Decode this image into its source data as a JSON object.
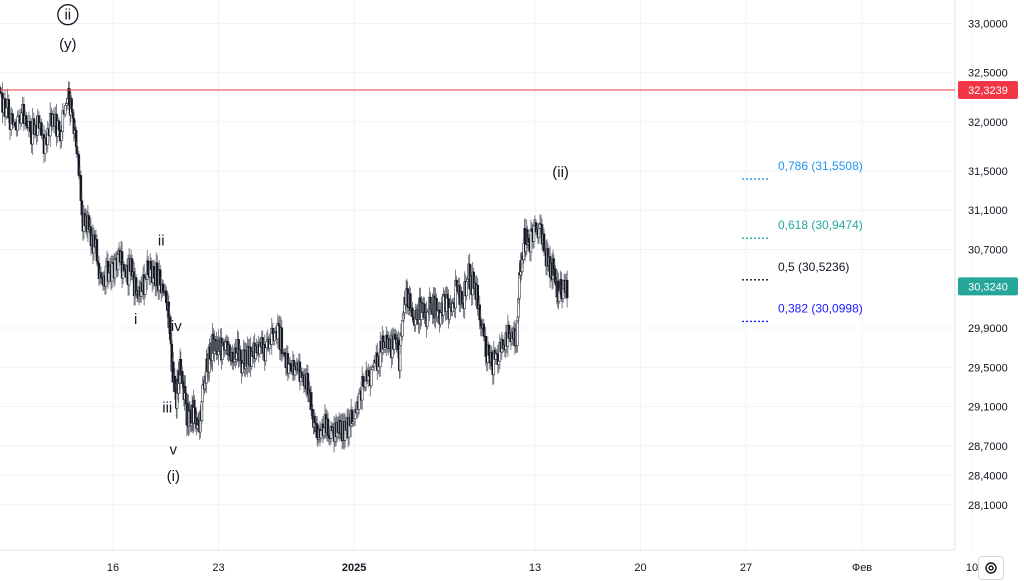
{
  "chart_data": {
    "type": "candlestick",
    "y_ticks": [
      "33,0000",
      "32,5000",
      "32,0000",
      "31,5000",
      "31,1000",
      "30,7000",
      "29,9000",
      "29,5000",
      "29,1000",
      "28,7000",
      "28,4000",
      "28,1000"
    ],
    "y_range": [
      27.7,
      33.25
    ],
    "x_ticks": [
      "16",
      "23",
      "2025",
      "13",
      "20",
      "27",
      "Фев",
      "10"
    ],
    "price_line": {
      "label": "32,3239",
      "value": 32.3239,
      "color": "#f23645"
    },
    "last_price": {
      "label": "30,3240",
      "value": 30.324,
      "color": "#26a69a"
    },
    "fib_levels": [
      {
        "label": "0,786 (31,5508)",
        "value": 31.5508,
        "color": "#2196f3"
      },
      {
        "label": "0,618 (30,9474)",
        "value": 30.9474,
        "color": "#26a69a"
      },
      {
        "label": "0,5 (30,5236)",
        "value": 30.5236,
        "color": "#131722"
      },
      {
        "label": "0,382 (30,0998)",
        "value": 30.0998,
        "color": "#1a1aff"
      }
    ],
    "waves": [
      {
        "label": "ii",
        "circled": true,
        "x_day": 13.0,
        "y": 33.05
      },
      {
        "label": "(y)",
        "circled": false,
        "x_day": 13.0,
        "y": 32.75
      },
      {
        "label": "ii",
        "circled": false,
        "x_day": 19.2,
        "y": 30.75
      },
      {
        "label": "i",
        "circled": false,
        "x_day": 17.5,
        "y": 29.95
      },
      {
        "label": "iv",
        "circled": false,
        "x_day": 20.2,
        "y": 29.88
      },
      {
        "label": "iii",
        "circled": false,
        "x_day": 19.6,
        "y": 29.05
      },
      {
        "label": "v",
        "circled": false,
        "x_day": 20.0,
        "y": 28.62
      },
      {
        "label": "(i)",
        "circled": false,
        "x_day": 20.0,
        "y": 28.35
      },
      {
        "label": "(ii)",
        "circled": false,
        "x_day": 45.7,
        "y": 31.45
      }
    ],
    "series": [
      {
        "d": 8.5,
        "c": 32.3
      },
      {
        "d": 9.0,
        "c": 32.1
      },
      {
        "d": 9.5,
        "c": 31.95
      },
      {
        "d": 10.0,
        "c": 32.1
      },
      {
        "d": 10.5,
        "c": 31.85
      },
      {
        "d": 11.0,
        "c": 32.0
      },
      {
        "d": 11.5,
        "c": 31.75
      },
      {
        "d": 12.0,
        "c": 32.05
      },
      {
        "d": 12.5,
        "c": 31.9
      },
      {
        "d": 13.0,
        "c": 32.3
      },
      {
        "d": 13.3,
        "c": 32.1
      },
      {
        "d": 13.6,
        "c": 31.7
      },
      {
        "d": 14.0,
        "c": 31.0
      },
      {
        "d": 14.4,
        "c": 30.9
      },
      {
        "d": 14.8,
        "c": 30.75
      },
      {
        "d": 15.2,
        "c": 30.35
      },
      {
        "d": 15.6,
        "c": 30.45
      },
      {
        "d": 16.0,
        "c": 30.5
      },
      {
        "d": 16.4,
        "c": 30.6
      },
      {
        "d": 16.8,
        "c": 30.45
      },
      {
        "d": 17.2,
        "c": 30.5
      },
      {
        "d": 17.6,
        "c": 30.2
      },
      {
        "d": 18.0,
        "c": 30.35
      },
      {
        "d": 18.4,
        "c": 30.5
      },
      {
        "d": 18.8,
        "c": 30.45
      },
      {
        "d": 19.2,
        "c": 30.35
      },
      {
        "d": 19.6,
        "c": 30.15
      },
      {
        "d": 19.9,
        "c": 29.6
      },
      {
        "d": 20.2,
        "c": 29.2
      },
      {
        "d": 20.5,
        "c": 29.5
      },
      {
        "d": 20.8,
        "c": 29.1
      },
      {
        "d": 21.1,
        "c": 28.95
      },
      {
        "d": 21.4,
        "c": 29.05
      },
      {
        "d": 21.7,
        "c": 28.85
      },
      {
        "d": 22.0,
        "c": 29.3
      },
      {
        "d": 22.3,
        "c": 29.55
      },
      {
        "d": 22.6,
        "c": 29.7
      },
      {
        "d": 23.0,
        "c": 29.65
      },
      {
        "d": 23.4,
        "c": 29.75
      },
      {
        "d": 23.8,
        "c": 29.6
      },
      {
        "d": 24.2,
        "c": 29.7
      },
      {
        "d": 24.6,
        "c": 29.55
      },
      {
        "d": 25.0,
        "c": 29.6
      },
      {
        "d": 25.4,
        "c": 29.7
      },
      {
        "d": 25.8,
        "c": 29.75
      },
      {
        "d": 26.2,
        "c": 29.65
      },
      {
        "d": 26.6,
        "c": 29.8
      },
      {
        "d": 27.0,
        "c": 29.85
      },
      {
        "d": 27.4,
        "c": 29.6
      },
      {
        "d": 27.8,
        "c": 29.45
      },
      {
        "d": 28.2,
        "c": 29.5
      },
      {
        "d": 28.6,
        "c": 29.4
      },
      {
        "d": 29.0,
        "c": 29.3
      },
      {
        "d": 29.3,
        "c": 28.95
      },
      {
        "d": 29.6,
        "c": 28.85
      },
      {
        "d": 30.0,
        "c": 28.9
      },
      {
        "d": 30.4,
        "c": 28.85
      },
      {
        "d": 30.8,
        "c": 28.9
      },
      {
        "d": 31.2,
        "c": 28.85
      },
      {
        "d": 31.6,
        "c": 28.9
      },
      {
        "d": 32.0,
        "c": 28.95
      },
      {
        "d": 32.4,
        "c": 29.25
      },
      {
        "d": 32.8,
        "c": 29.35
      },
      {
        "d": 33.2,
        "c": 29.5
      },
      {
        "d": 33.6,
        "c": 29.6
      },
      {
        "d": 34.0,
        "c": 29.75
      },
      {
        "d": 34.4,
        "c": 29.7
      },
      {
        "d": 34.8,
        "c": 29.85
      },
      {
        "d": 35.0,
        "c": 29.55
      },
      {
        "d": 35.3,
        "c": 30.15
      },
      {
        "d": 35.6,
        "c": 30.2
      },
      {
        "d": 36.0,
        "c": 30.0
      },
      {
        "d": 36.4,
        "c": 30.1
      },
      {
        "d": 36.8,
        "c": 30.05
      },
      {
        "d": 37.2,
        "c": 30.15
      },
      {
        "d": 37.6,
        "c": 30.0
      },
      {
        "d": 38.0,
        "c": 30.2
      },
      {
        "d": 38.4,
        "c": 30.05
      },
      {
        "d": 38.8,
        "c": 30.3
      },
      {
        "d": 39.2,
        "c": 30.15
      },
      {
        "d": 39.6,
        "c": 30.45
      },
      {
        "d": 40.0,
        "c": 30.3
      },
      {
        "d": 40.4,
        "c": 30.05
      },
      {
        "d": 40.8,
        "c": 29.65
      },
      {
        "d": 41.2,
        "c": 29.55
      },
      {
        "d": 41.6,
        "c": 29.65
      },
      {
        "d": 42.0,
        "c": 29.75
      },
      {
        "d": 42.4,
        "c": 29.85
      },
      {
        "d": 42.8,
        "c": 29.8
      },
      {
        "d": 43.0,
        "c": 30.45
      },
      {
        "d": 43.3,
        "c": 30.8
      },
      {
        "d": 43.6,
        "c": 30.75
      },
      {
        "d": 44.0,
        "c": 30.9
      },
      {
        "d": 44.4,
        "c": 30.85
      },
      {
        "d": 44.8,
        "c": 30.6
      },
      {
        "d": 45.2,
        "c": 30.5
      },
      {
        "d": 45.5,
        "c": 30.25
      },
      {
        "d": 45.8,
        "c": 30.32
      }
    ]
  },
  "ui": {
    "settings_icon": "gear-icon"
  }
}
